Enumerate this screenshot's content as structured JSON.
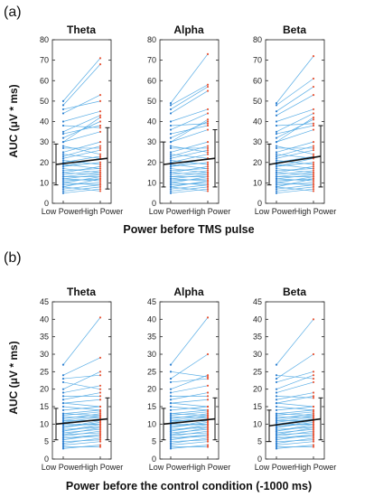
{
  "panels": [
    {
      "label": "(a)",
      "xlabel": "Power before TMS pulse",
      "ylabel": "AUC (μV * ms)",
      "chart_data": [
        {
          "type": "line",
          "title": "Theta",
          "categories": [
            "Low Power",
            "High Power"
          ],
          "ylim": [
            0,
            80
          ],
          "yticks": [
            0,
            10,
            20,
            30,
            40,
            50,
            60,
            70,
            80
          ],
          "subjects": [
            [
              5,
              7
            ],
            [
              6,
              8
            ],
            [
              7,
              9
            ],
            [
              8,
              6
            ],
            [
              8,
              12
            ],
            [
              9,
              10
            ],
            [
              10,
              9
            ],
            [
              10,
              13
            ],
            [
              11,
              12
            ],
            [
              12,
              14
            ],
            [
              12,
              11
            ],
            [
              13,
              15
            ],
            [
              13,
              13
            ],
            [
              14,
              16
            ],
            [
              15,
              14
            ],
            [
              15,
              18
            ],
            [
              16,
              17
            ],
            [
              17,
              15
            ],
            [
              18,
              20
            ],
            [
              18,
              22
            ],
            [
              19,
              17
            ],
            [
              20,
              23
            ],
            [
              21,
              19
            ],
            [
              22,
              26
            ],
            [
              23,
              28
            ],
            [
              24,
              22
            ],
            [
              25,
              30
            ],
            [
              27,
              27
            ],
            [
              28,
              24
            ],
            [
              30,
              35
            ],
            [
              32,
              40
            ],
            [
              34,
              38
            ],
            [
              35,
              43
            ],
            [
              38,
              37
            ],
            [
              40,
              45
            ],
            [
              44,
              53
            ],
            [
              46,
              50
            ],
            [
              48,
              68
            ],
            [
              50,
              71
            ],
            [
              30,
              42
            ]
          ],
          "mean": [
            19,
            22
          ],
          "sd": [
            10,
            15
          ]
        },
        {
          "type": "line",
          "title": "Alpha",
          "categories": [
            "Low Power",
            "High Power"
          ],
          "ylim": [
            0,
            80
          ],
          "yticks": [
            0,
            10,
            20,
            30,
            40,
            50,
            60,
            70,
            80
          ],
          "subjects": [
            [
              5,
              7
            ],
            [
              6,
              8
            ],
            [
              7,
              9
            ],
            [
              8,
              6
            ],
            [
              8,
              11
            ],
            [
              9,
              10
            ],
            [
              10,
              9
            ],
            [
              10,
              13
            ],
            [
              11,
              12
            ],
            [
              12,
              14
            ],
            [
              12,
              11
            ],
            [
              13,
              15
            ],
            [
              13,
              13
            ],
            [
              14,
              16
            ],
            [
              15,
              14
            ],
            [
              15,
              18
            ],
            [
              16,
              17
            ],
            [
              17,
              15
            ],
            [
              18,
              20
            ],
            [
              18,
              22
            ],
            [
              19,
              17
            ],
            [
              20,
              24
            ],
            [
              21,
              19
            ],
            [
              22,
              26
            ],
            [
              23,
              28
            ],
            [
              24,
              22
            ],
            [
              25,
              30
            ],
            [
              27,
              27
            ],
            [
              28,
              25
            ],
            [
              30,
              36
            ],
            [
              32,
              40
            ],
            [
              34,
              38
            ],
            [
              36,
              44
            ],
            [
              38,
              39
            ],
            [
              40,
              46
            ],
            [
              44,
              55
            ],
            [
              46,
              57
            ],
            [
              48,
              58
            ],
            [
              49,
              73
            ],
            [
              30,
              41
            ]
          ],
          "mean": [
            19,
            22
          ],
          "sd": [
            11,
            14
          ]
        },
        {
          "type": "line",
          "title": "Beta",
          "categories": [
            "Low Power",
            "High Power"
          ],
          "ylim": [
            0,
            80
          ],
          "yticks": [
            0,
            10,
            20,
            30,
            40,
            50,
            60,
            70,
            80
          ],
          "subjects": [
            [
              5,
              7
            ],
            [
              6,
              8
            ],
            [
              7,
              9
            ],
            [
              8,
              6
            ],
            [
              8,
              12
            ],
            [
              9,
              10
            ],
            [
              10,
              9
            ],
            [
              10,
              13
            ],
            [
              11,
              12
            ],
            [
              12,
              14
            ],
            [
              12,
              11
            ],
            [
              13,
              15
            ],
            [
              13,
              13
            ],
            [
              14,
              16
            ],
            [
              15,
              14
            ],
            [
              15,
              18
            ],
            [
              16,
              17
            ],
            [
              17,
              15
            ],
            [
              18,
              20
            ],
            [
              18,
              22
            ],
            [
              19,
              17
            ],
            [
              20,
              23
            ],
            [
              21,
              19
            ],
            [
              22,
              26
            ],
            [
              23,
              28
            ],
            [
              24,
              22
            ],
            [
              25,
              30
            ],
            [
              27,
              27
            ],
            [
              28,
              24
            ],
            [
              30,
              36
            ],
            [
              32,
              41
            ],
            [
              34,
              38
            ],
            [
              35,
              44
            ],
            [
              38,
              39
            ],
            [
              40,
              46
            ],
            [
              43,
              53
            ],
            [
              45,
              57
            ],
            [
              48,
              61
            ],
            [
              49,
              72
            ],
            [
              30,
              42
            ]
          ],
          "mean": [
            19,
            23
          ],
          "sd": [
            10,
            15
          ]
        }
      ]
    },
    {
      "label": "(b)",
      "xlabel": "Power before the control condition (-1000 ms)",
      "ylabel": "AUC (μV * ms)",
      "chart_data": [
        {
          "type": "line",
          "title": "Theta",
          "categories": [
            "Low Power",
            "High Power"
          ],
          "ylim": [
            0,
            45
          ],
          "yticks": [
            0,
            5,
            10,
            15,
            20,
            25,
            30,
            35,
            40,
            45
          ],
          "subjects": [
            [
              3,
              4
            ],
            [
              3.5,
              3.5
            ],
            [
              4,
              5
            ],
            [
              4.5,
              6
            ],
            [
              5,
              5.5
            ],
            [
              5.5,
              7
            ],
            [
              6,
              6.5
            ],
            [
              6.5,
              8
            ],
            [
              7,
              7.5
            ],
            [
              7,
              9
            ],
            [
              7.5,
              8.5
            ],
            [
              8,
              9.5
            ],
            [
              8,
              10
            ],
            [
              8.5,
              9
            ],
            [
              9,
              10.5
            ],
            [
              9,
              11
            ],
            [
              9.5,
              10
            ],
            [
              10,
              11.5
            ],
            [
              10.5,
              12
            ],
            [
              11,
              11
            ],
            [
              11,
              12.5
            ],
            [
              11.5,
              13
            ],
            [
              12,
              12
            ],
            [
              12.5,
              13.5
            ],
            [
              13,
              14
            ],
            [
              14,
              15
            ],
            [
              15,
              14
            ],
            [
              16,
              17
            ],
            [
              17,
              19
            ],
            [
              18,
              18
            ],
            [
              19,
              21
            ],
            [
              20,
              25
            ],
            [
              22,
              20
            ],
            [
              23,
              24
            ],
            [
              24,
              29
            ],
            [
              27,
              40.5
            ],
            [
              6,
              7
            ],
            [
              10,
              10
            ],
            [
              13,
              12.5
            ],
            [
              16,
              15
            ]
          ],
          "mean": [
            10,
            11.5
          ],
          "sd": [
            4.5,
            6
          ]
        },
        {
          "type": "line",
          "title": "Alpha",
          "categories": [
            "Low Power",
            "High Power"
          ],
          "ylim": [
            0,
            45
          ],
          "yticks": [
            0,
            5,
            10,
            15,
            20,
            25,
            30,
            35,
            40,
            45
          ],
          "subjects": [
            [
              3,
              4
            ],
            [
              3.5,
              3.5
            ],
            [
              4,
              5
            ],
            [
              4.5,
              6
            ],
            [
              5,
              5.5
            ],
            [
              5.5,
              7
            ],
            [
              6,
              6.5
            ],
            [
              6.5,
              8
            ],
            [
              7,
              7.5
            ],
            [
              7,
              9
            ],
            [
              7.5,
              8.5
            ],
            [
              8,
              9.5
            ],
            [
              8,
              10
            ],
            [
              8.5,
              9
            ],
            [
              9,
              10.5
            ],
            [
              9,
              11
            ],
            [
              9.5,
              10
            ],
            [
              10,
              11.5
            ],
            [
              10.5,
              12
            ],
            [
              11,
              11
            ],
            [
              11,
              12.5
            ],
            [
              11.5,
              13
            ],
            [
              12,
              12
            ],
            [
              12.5,
              13.5
            ],
            [
              13,
              14
            ],
            [
              14,
              15
            ],
            [
              15,
              14
            ],
            [
              16,
              17
            ],
            [
              17,
              19
            ],
            [
              18,
              18
            ],
            [
              19,
              21
            ],
            [
              20,
              24
            ],
            [
              22,
              23
            ],
            [
              23,
              30
            ],
            [
              25,
              23.5
            ],
            [
              27,
              40.5
            ],
            [
              6,
              7
            ],
            [
              10,
              10
            ],
            [
              13,
              12.5
            ],
            [
              16,
              15
            ]
          ],
          "mean": [
            10,
            11.5
          ],
          "sd": [
            4.5,
            6
          ]
        },
        {
          "type": "line",
          "title": "Beta",
          "categories": [
            "Low Power",
            "High Power"
          ],
          "ylim": [
            0,
            45
          ],
          "yticks": [
            0,
            5,
            10,
            15,
            20,
            25,
            30,
            35,
            40,
            45
          ],
          "subjects": [
            [
              3,
              4
            ],
            [
              3.5,
              3.5
            ],
            [
              4,
              5
            ],
            [
              4.5,
              6
            ],
            [
              5,
              5.5
            ],
            [
              5.5,
              7
            ],
            [
              6,
              6.5
            ],
            [
              6.5,
              8
            ],
            [
              7,
              7.5
            ],
            [
              7,
              9
            ],
            [
              7.5,
              8.5
            ],
            [
              8,
              9.5
            ],
            [
              8,
              10
            ],
            [
              8.5,
              9
            ],
            [
              9,
              10.5
            ],
            [
              9,
              11
            ],
            [
              9.5,
              10
            ],
            [
              10,
              11.5
            ],
            [
              10.5,
              12
            ],
            [
              11,
              11
            ],
            [
              11,
              12.5
            ],
            [
              11.5,
              13
            ],
            [
              12,
              12
            ],
            [
              12.5,
              13.5
            ],
            [
              13,
              14
            ],
            [
              14,
              15
            ],
            [
              15,
              14
            ],
            [
              16,
              18
            ],
            [
              17,
              19
            ],
            [
              18,
              17.5
            ],
            [
              19,
              22
            ],
            [
              20,
              24
            ],
            [
              22,
              25
            ],
            [
              23,
              30
            ],
            [
              24,
              23
            ],
            [
              27,
              40
            ],
            [
              6,
              7
            ],
            [
              10,
              10
            ],
            [
              13,
              12.5
            ],
            [
              16,
              15
            ]
          ],
          "mean": [
            9.5,
            11.5
          ],
          "sd": [
            4.5,
            6
          ]
        }
      ]
    }
  ],
  "colors": {
    "subject_line": "#5aaee6",
    "low_marker": "#2e7fd0",
    "high_marker": "#e8583a",
    "mean_line": "#111111",
    "axis": "#222222"
  }
}
